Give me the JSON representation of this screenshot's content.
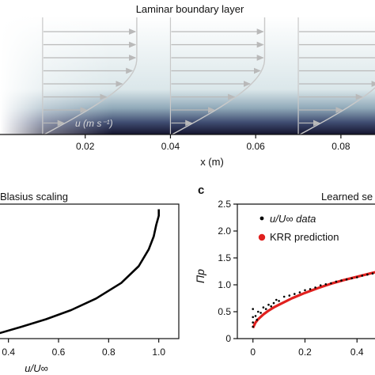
{
  "chart_data": [
    {
      "type": "heatmap",
      "title": "Laminar boundary layer",
      "xlabel": "x (m)",
      "xticks": [
        "0.02",
        "0.04",
        "0.06",
        "0.08"
      ],
      "xlim": [
        0.0,
        0.088
      ],
      "profile_label": "u (m s⁻¹)",
      "profile_x_positions": [
        0.01,
        0.04,
        0.07
      ],
      "colormap": [
        "#ffffff",
        "#dbe7ea",
        "#8fa8b8",
        "#3e4b70",
        "#14142e"
      ]
    },
    {
      "type": "line",
      "title": "Blasius scaling",
      "xlabel": "u/U∞",
      "xticks": [
        "0.4",
        "0.6",
        "0.8",
        "1.0"
      ],
      "xlim": [
        0.36,
        1.08
      ],
      "series": [
        {
          "type": "line",
          "x": [
            0.36,
            0.45,
            0.55,
            0.65,
            0.75,
            0.85,
            0.92,
            0.96,
            0.98,
            0.99,
            1.0,
            1.0
          ],
          "y": [
            0.04,
            0.09,
            0.15,
            0.22,
            0.31,
            0.43,
            0.56,
            0.69,
            0.79,
            0.88,
            0.95,
            1.0
          ]
        }
      ]
    },
    {
      "type": "scatter",
      "panel_letter": "c",
      "title": "Learned se",
      "ylabel": "Πp",
      "xticks": [
        "0",
        "0.2",
        "0.4"
      ],
      "yticks": [
        "0",
        "0.5",
        "1.0",
        "1.5",
        "2.0",
        "2.5"
      ],
      "xlim": [
        -0.06,
        0.53
      ],
      "ylim": [
        0,
        2.5
      ],
      "series": [
        {
          "name": "u/U∞ data",
          "type": "scatter",
          "color": "#000000",
          "x": [
            0.0,
            0.0,
            0.0,
            0.0,
            0.01,
            0.015,
            0.02,
            0.03,
            0.04,
            0.05,
            0.06,
            0.07,
            0.08,
            0.09,
            0.1,
            0.12,
            0.14,
            0.16,
            0.18,
            0.2,
            0.22,
            0.24,
            0.26,
            0.28,
            0.3,
            0.32,
            0.34,
            0.36,
            0.38,
            0.4,
            0.42,
            0.44,
            0.46,
            0.48,
            0.5
          ],
          "y": [
            0.55,
            0.4,
            0.3,
            0.22,
            0.42,
            0.35,
            0.5,
            0.48,
            0.58,
            0.55,
            0.63,
            0.6,
            0.66,
            0.72,
            0.7,
            0.78,
            0.8,
            0.83,
            0.86,
            0.9,
            0.92,
            0.95,
            0.99,
            1.01,
            1.03,
            1.06,
            1.08,
            1.1,
            1.12,
            1.14,
            1.17,
            1.19,
            1.21,
            1.23,
            1.26
          ]
        },
        {
          "name": "KRR prediction",
          "type": "line",
          "color": "#e0201e",
          "x": [
            0.0,
            0.01,
            0.02,
            0.04,
            0.06,
            0.08,
            0.1,
            0.15,
            0.2,
            0.25,
            0.3,
            0.35,
            0.4,
            0.45,
            0.5
          ],
          "y": [
            0.2,
            0.3,
            0.36,
            0.45,
            0.52,
            0.58,
            0.63,
            0.75,
            0.85,
            0.94,
            1.02,
            1.09,
            1.15,
            1.21,
            1.27
          ]
        }
      ]
    }
  ]
}
